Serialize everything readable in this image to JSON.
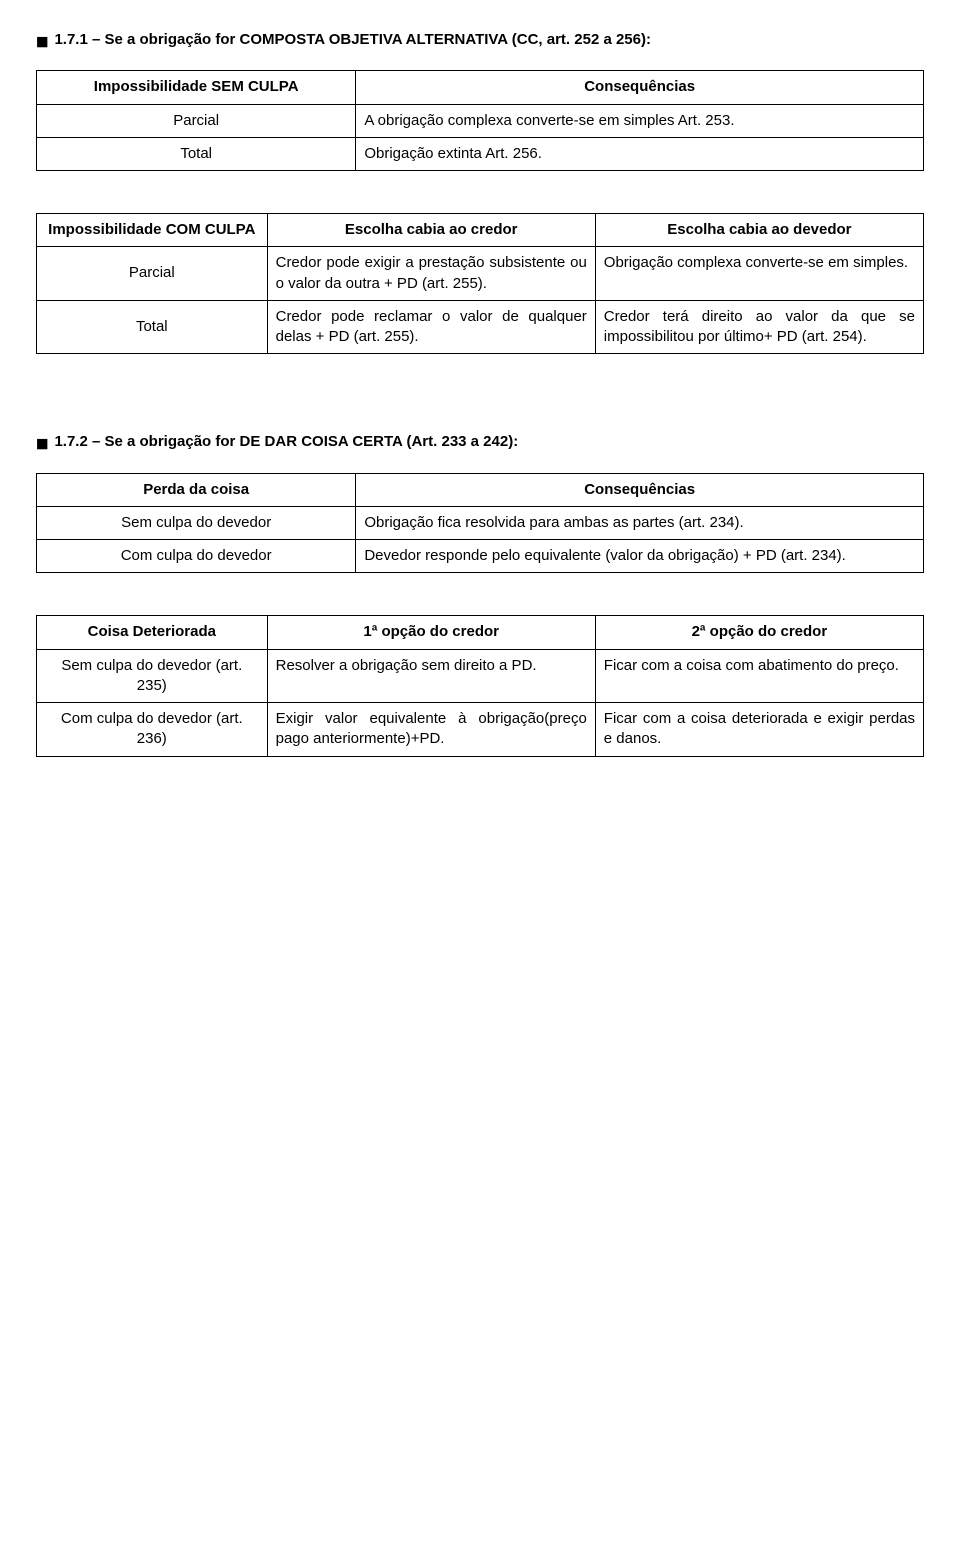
{
  "section1": {
    "heading": "1.7.1 – Se a obrigação for COMPOSTA OBJETIVA ALTERNATIVA (CC, art. 252 a 256):",
    "table_a": {
      "header_left": "Impossibilidade SEM CULPA",
      "header_right": "Consequências",
      "rows": [
        {
          "left": "Parcial",
          "right": "A obrigação complexa converte-se em simples Art. 253."
        },
        {
          "left": "Total",
          "right": "Obrigação extinta Art. 256."
        }
      ]
    },
    "table_b": {
      "header_c1": "Impossibilidade COM CULPA",
      "header_c2": "Escolha cabia ao credor",
      "header_c3": "Escolha cabia ao devedor",
      "rows": [
        {
          "c1": "Parcial",
          "c2": "Credor pode exigir a prestação subsistente ou o valor da outra + PD (art. 255).",
          "c3": "Obrigação complexa converte-se em simples."
        },
        {
          "c1": "Total",
          "c2": "Credor pode reclamar o valor de qualquer delas + PD (art. 255).",
          "c3": "Credor terá direito ao valor da que se impossibilitou por último+ PD (art. 254)."
        }
      ]
    }
  },
  "section2": {
    "heading": "1.7.2 – Se a obrigação for DE DAR COISA CERTA (Art. 233 a 242):",
    "table_a": {
      "header_left": "Perda da coisa",
      "header_right": "Consequências",
      "rows": [
        {
          "left": "Sem culpa do devedor",
          "right": "Obrigação fica resolvida para ambas as partes (art. 234)."
        },
        {
          "left": "Com culpa do devedor",
          "right": "Devedor responde pelo equivalente (valor da obrigação) + PD (art. 234)."
        }
      ]
    },
    "table_b": {
      "header_c1": "Coisa Deteriorada",
      "header_c2": "1ª opção do credor",
      "header_c3": "2ª opção do credor",
      "rows": [
        {
          "c1": "Sem culpa do devedor (art. 235)",
          "c2": "Resolver a obrigação sem direito a PD.",
          "c3": "Ficar com a coisa com abatimento do preço."
        },
        {
          "c1": "Com culpa do devedor (art. 236)",
          "c2": "Exigir valor equivalente à obrigação(preço pago anteriormente)+PD.",
          "c3": "Ficar com a coisa deteriorada e exigir perdas e danos."
        }
      ]
    }
  }
}
